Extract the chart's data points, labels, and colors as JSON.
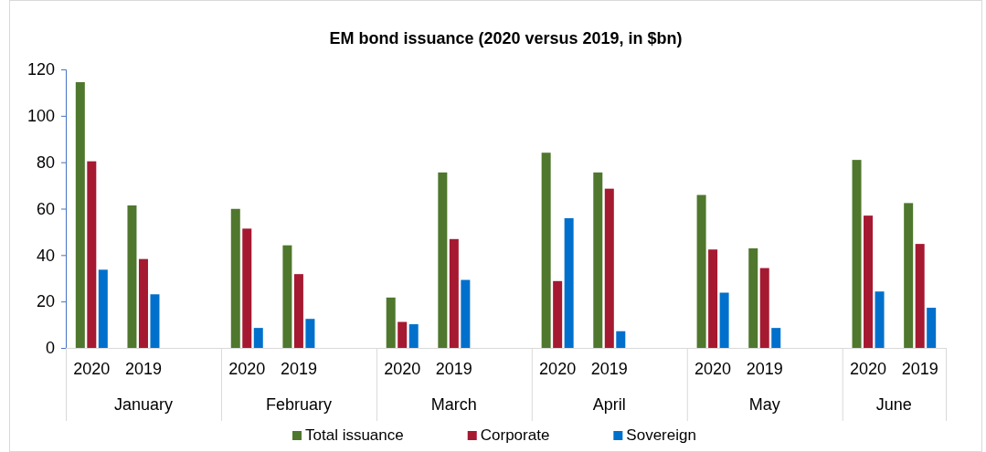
{
  "chart_data": {
    "type": "bar",
    "title": "EM bond issuance (2020 versus 2019, in $bn)",
    "categories": [
      "2020",
      "2019",
      null,
      "2020",
      "2019",
      null,
      "2020",
      "2019",
      null,
      "2020",
      "2019",
      null,
      "2020",
      "2019",
      null,
      "2020",
      "2019"
    ],
    "series": [
      {
        "name": "Total issuance",
        "color": "#4f772d",
        "values": [
          114.5,
          61.4,
          null,
          59.9,
          44.2,
          null,
          21.7,
          75.6,
          null,
          84.1,
          75.6,
          null,
          65.9,
          42.9,
          null,
          81.0,
          62.4
        ]
      },
      {
        "name": "Corporate",
        "color": "#a51931",
        "values": [
          80.4,
          38.3,
          null,
          51.4,
          31.8,
          null,
          11.2,
          46.9,
          null,
          28.8,
          68.6,
          null,
          42.4,
          34.4,
          null,
          57.0,
          44.8
        ]
      },
      {
        "name": "Sovereign",
        "color": "#0070cc",
        "values": [
          33.7,
          23.1,
          null,
          8.6,
          12.5,
          null,
          10.2,
          29.3,
          null,
          55.9,
          7.2,
          null,
          23.8,
          8.6,
          null,
          24.3,
          17.3
        ]
      }
    ],
    "annotations": [
      "January",
      "February",
      "March",
      "April",
      "May",
      "June"
    ],
    "ylim": [
      0,
      120
    ],
    "yticks": [
      0,
      20,
      40,
      60,
      80,
      100,
      120
    ],
    "grid": false,
    "legend": "bottom"
  }
}
